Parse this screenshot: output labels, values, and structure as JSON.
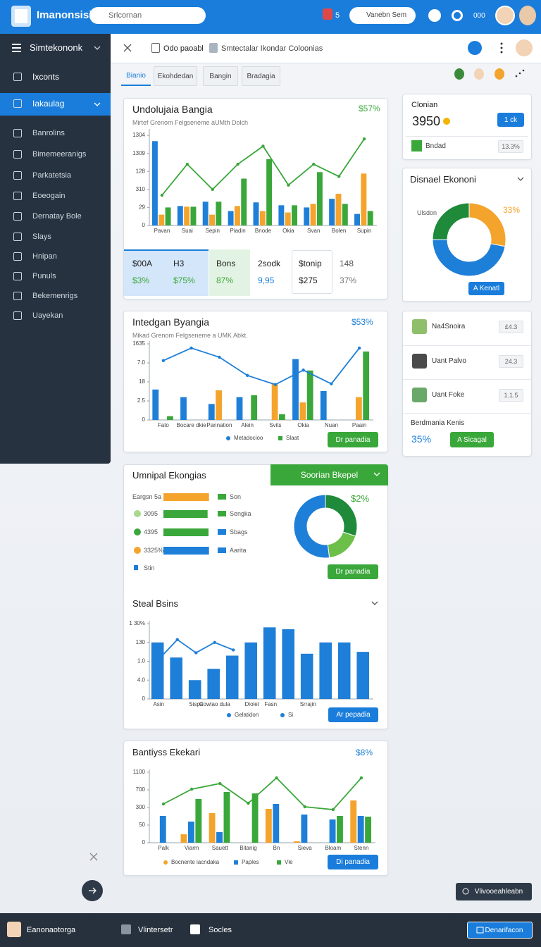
{
  "header": {
    "brand": "Imanonsisi",
    "search": "Srlcornan",
    "badge": "5",
    "search_right": "Vanebn Sem",
    "counter": "000"
  },
  "sidebar": {
    "title": "Simtekononk",
    "items": [
      "Ixconts",
      "Iakaulag",
      "Banrolins",
      "Bimemeeranigs",
      "Parkatetsia",
      "Eoeogain",
      "Dernatay Bole",
      "Slays",
      "Hnipan",
      "Punuls",
      "Bekemenrigs",
      "Uayekan"
    ]
  },
  "toolbar": {
    "items": [
      "Odo paoabl",
      "Smtectalar Ikondar Coloonias"
    ]
  },
  "tabs": [
    "Bianio",
    "Ekohdedan",
    "Bangin",
    "Bradagia"
  ],
  "chart_data": [
    {
      "type": "bar",
      "title": "Undolujaia Bangia",
      "subtitle": "Mirtef Grenom Felgseneme aUMth Dolch",
      "badge": "$57%",
      "categories": [
        "Pavan",
        "Suai",
        "Sepin",
        "Piadin",
        "Bnode",
        "Okia",
        "Svan",
        "Bolen",
        "Supin"
      ],
      "series": [
        {
          "color": "#1e7fd8",
          "values": [
            1170,
            270,
            330,
            200,
            320,
            280,
            250,
            370,
            160
          ]
        },
        {
          "color": "#f4a42c",
          "values": [
            150,
            260,
            150,
            270,
            200,
            180,
            300,
            440,
            720
          ]
        },
        {
          "color": "#3aa73a",
          "values": [
            250,
            260,
            330,
            650,
            920,
            280,
            740,
            300,
            200
          ]
        },
        {
          "type": "line",
          "color": "#3aa73a",
          "values": [
            420,
            850,
            500,
            850,
            1100,
            560,
            850,
            680,
            1200
          ]
        }
      ],
      "ylim": [
        0,
        1300
      ],
      "yticks": [
        0,
        {
          "value": 250,
          "label": "29"
        },
        {
          "value": 500,
          "label": "310"
        },
        {
          "value": 750,
          "label": "128"
        },
        {
          "value": 1000,
          "label": "1309"
        },
        {
          "value": 1250,
          "label": "1304"
        }
      ]
    },
    {
      "type": "bar",
      "title": "Intedgan Byangia",
      "subtitle": "Mikad Grenom Felgseneme a UMK Abkt.",
      "badge": "$53%",
      "button": "Dr panadia",
      "categories": [
        "Fato",
        "Bocare dkie",
        "Pannation",
        "Alein",
        "Svits",
        "Okia",
        "Nuan",
        "Paain"
      ],
      "series": [
        {
          "name": "Metadocioo",
          "color": "#1e7fd8",
          "values": [
            800,
            600,
            420,
            600,
            0,
            1600,
            760,
            0
          ]
        },
        {
          "color": "#f4a42c",
          "values": [
            0,
            0,
            780,
            0,
            950,
            460,
            0,
            600
          ]
        },
        {
          "name": "Slaat",
          "color": "#3aa73a",
          "values": [
            100,
            0,
            0,
            650,
            150,
            1300,
            0,
            1800
          ]
        },
        {
          "type": "line",
          "color": "#1e7fd8",
          "values": [
            1560,
            1890,
            1650,
            1170,
            930,
            1310,
            950,
            1890
          ]
        }
      ],
      "ylim": [
        0,
        2000
      ],
      "yticks": [
        0,
        {
          "value": 500,
          "label": "2.5"
        },
        {
          "value": 1000,
          "label": "18"
        },
        {
          "value": 1500,
          "label": "7.0"
        },
        {
          "value": 2000,
          "label": "1635"
        }
      ]
    },
    {
      "type": "hbar",
      "title": "Umnipal Ekongias",
      "categories": [
        "Eargsn 5a",
        "3095",
        "4395",
        "3325%"
      ],
      "values": [
        98,
        95,
        97,
        98
      ],
      "colors": [
        "#f4a42c",
        "#3aa73a",
        "#3aa73a",
        "#1e7fd8"
      ],
      "xlim": [
        0,
        100
      ],
      "legend": [
        {
          "name": "Son",
          "color": "#3aa73a"
        },
        {
          "name": "Sengka",
          "color": "#3aa73a"
        },
        {
          "name": "Sbags",
          "color": "#1e7fd8"
        },
        {
          "name": "Aarita",
          "color": "#1e7fd8"
        }
      ],
      "extra_label": "Stin"
    },
    {
      "type": "pie",
      "dropdown": "Soorian Bkepel",
      "annotation": "$2%",
      "button": "Dr panadia",
      "values": [
        30,
        18,
        52
      ],
      "colors": [
        "#1e8a3a",
        "#6cc04a",
        "#1e7fd8"
      ]
    },
    {
      "type": "bar",
      "title": "Steal Bsins",
      "button": "Ar pepadia",
      "categories": [
        "Asin",
        null,
        "Sispa",
        "Cowlao dula",
        null,
        "Diolet",
        "Fasn",
        null,
        "Srrajin",
        null,
        null,
        null
      ],
      "series": [
        {
          "name": "Gelatidon",
          "color": "#1e7fd8",
          "values": [
            300,
            220,
            100,
            160,
            230,
            300,
            380,
            370,
            240,
            300,
            300,
            250
          ]
        },
        {
          "name": "Si",
          "type": "line",
          "color": "#1e7fd8",
          "values": [
            210,
            315,
            245,
            300,
            260,
            null,
            null,
            null,
            null,
            null,
            null,
            null
          ]
        }
      ],
      "ylim": [
        0,
        400
      ],
      "yticks": [
        0,
        {
          "value": 100,
          "label": "4.0"
        },
        {
          "value": 200,
          "label": "1.0"
        },
        {
          "value": 300,
          "label": "130"
        },
        {
          "value": 400,
          "label": "1 30%"
        }
      ]
    },
    {
      "type": "bar",
      "title": "Bantiyss Ekekari",
      "badge": "$8%",
      "button": "Di panadia",
      "categories": [
        "Palk",
        "Viarm",
        "Sauett",
        "Bitanig",
        "Bn",
        "Sieva",
        "Bloam",
        "Stenn"
      ],
      "series": [
        {
          "name": "Bocnente iacndaka",
          "color": "#f4a42c",
          "values": [
            0,
            120,
            420,
            0,
            480,
            20,
            0,
            600
          ]
        },
        {
          "name": "Paples",
          "color": "#1e7fd8",
          "values": [
            380,
            300,
            150,
            0,
            550,
            400,
            330,
            380
          ]
        },
        {
          "name": "Vle",
          "color": "#3aa73a",
          "values": [
            0,
            620,
            720,
            700,
            0,
            0,
            380,
            370
          ]
        },
        {
          "type": "line",
          "color": "#3aa73a",
          "values": [
            550,
            760,
            840,
            560,
            920,
            510,
            470,
            920
          ]
        }
      ],
      "ylim": [
        0,
        1000
      ],
      "yticks": [
        0,
        {
          "value": 250,
          "label": "50"
        },
        {
          "value": 500,
          "label": "300"
        },
        {
          "value": 750,
          "label": "700"
        },
        {
          "value": 1000,
          "label": "1100"
        }
      ]
    },
    {
      "type": "pie",
      "title": "Disnael Ekononi",
      "label": "Ulsdon",
      "annotation": "33%",
      "button": "A Kenatl",
      "values": [
        28,
        47,
        25
      ],
      "colors": [
        "#f4a42c",
        "#1e7fd8",
        "#1e8a3a"
      ]
    }
  ],
  "stats": {
    "rows": [
      [
        "$00A",
        "H3",
        "Bons",
        "2sodk",
        "$tonip",
        "148"
      ],
      [
        "$3%",
        "$75%",
        "87%",
        "9,95",
        "$275",
        "37%"
      ]
    ]
  },
  "summary": {
    "title": "Clonian",
    "value": "3950",
    "button": "1 ck",
    "label": "Bndad",
    "percent": "13.3%"
  },
  "list": {
    "items": [
      {
        "label": "Na4Snoira",
        "value": "£4.3"
      },
      {
        "label": "Uant Palvo",
        "value": "24.3"
      },
      {
        "label": "Uant Foke",
        "value": "1.1.5"
      }
    ],
    "footer_title": "Berdmania Kenis",
    "footer_value": "35%",
    "footer_button": "A Sicagal"
  },
  "float_button": "Vlivooeahleabn",
  "footer": {
    "user": "Eanonaotorga",
    "items": [
      "Vlintersetr",
      "Socles"
    ],
    "button": "Denarifacon"
  }
}
